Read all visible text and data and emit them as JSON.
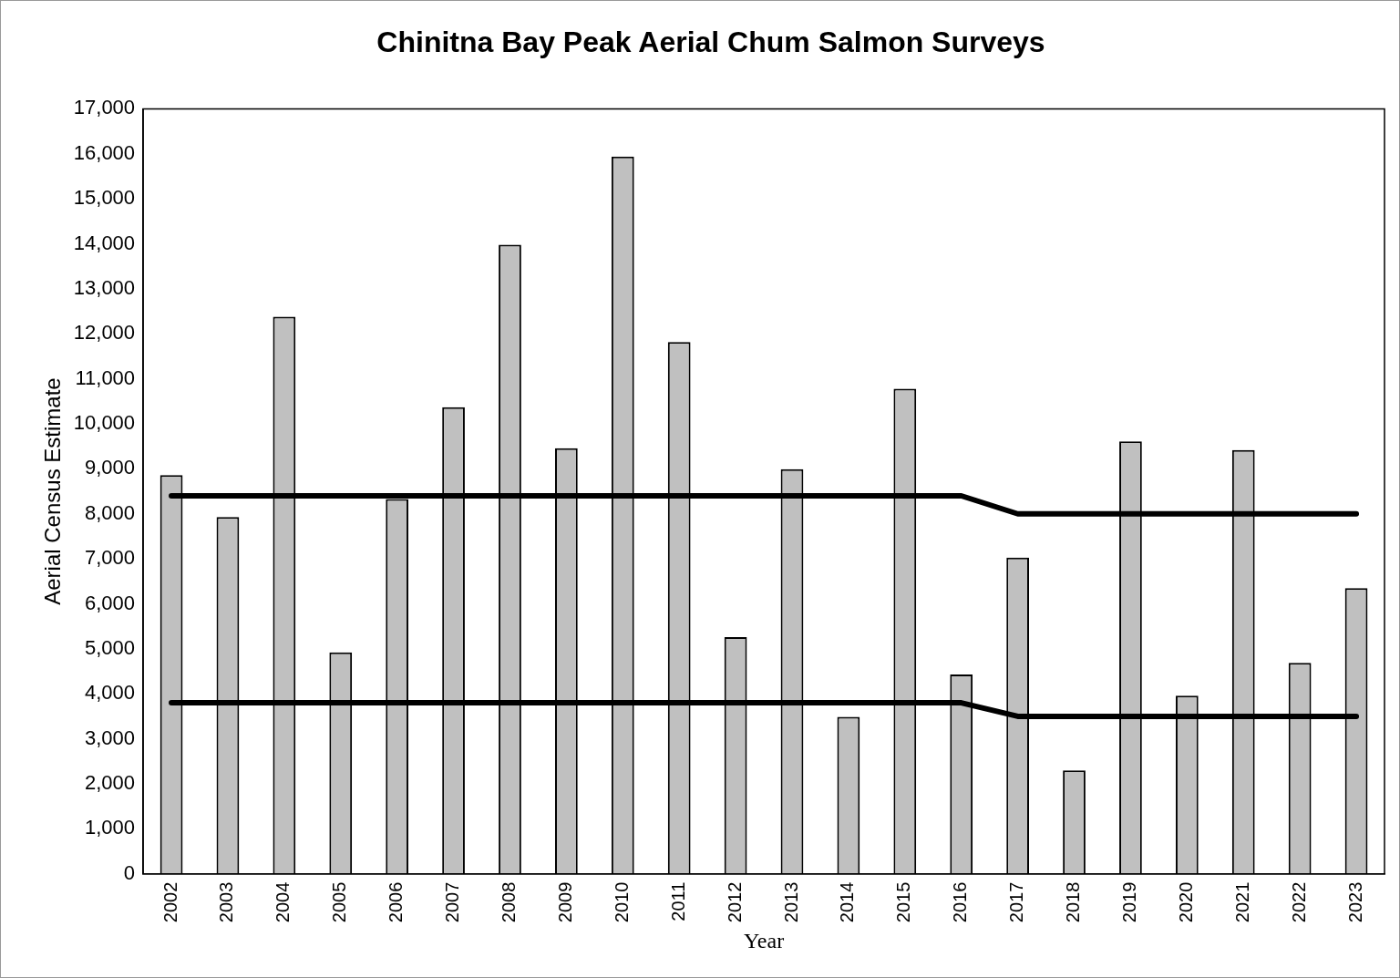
{
  "chart_data": {
    "type": "bar",
    "title": "Chinitna Bay Peak Aerial Chum Salmon Surveys",
    "xlabel": "Year",
    "ylabel": "Aerial Census Estimate",
    "categories": [
      "2002",
      "2003",
      "2004",
      "2005",
      "2006",
      "2007",
      "2008",
      "2009",
      "2010",
      "2011",
      "2012",
      "2013",
      "2014",
      "2015",
      "2016",
      "2017",
      "2018",
      "2019",
      "2020",
      "2021",
      "2022",
      "2023"
    ],
    "series": [
      {
        "color": "#c0c0c0",
        "values": [
          8860,
          7930,
          12380,
          4920,
          8330,
          10370,
          13980,
          9460,
          15940,
          11820,
          5260,
          8990,
          3490,
          10780,
          4430,
          7030,
          2300,
          9610,
          3960,
          9420,
          4690,
          6350
        ]
      },
      {
        "type": "line",
        "color": "#000000",
        "values": [
          8400,
          8400,
          8400,
          8400,
          8400,
          8400,
          8400,
          8400,
          8400,
          8400,
          8400,
          8400,
          8400,
          8400,
          8400,
          8000,
          8000,
          8000,
          8000,
          8000,
          8000,
          8000
        ]
      },
      {
        "type": "line",
        "color": "#000000",
        "values": [
          3800,
          3800,
          3800,
          3800,
          3800,
          3800,
          3800,
          3800,
          3800,
          3800,
          3800,
          3800,
          3800,
          3800,
          3800,
          3500,
          3500,
          3500,
          3500,
          3500,
          3500,
          3500
        ]
      }
    ],
    "ylim": [
      0,
      17000
    ],
    "yticks": [
      0,
      {
        "value": 1000,
        "label": "1,000"
      },
      {
        "value": 2000,
        "label": "2,000"
      },
      {
        "value": 3000,
        "label": "3,000"
      },
      {
        "value": 4000,
        "label": "4,000"
      },
      {
        "value": 5000,
        "label": "5,000"
      },
      {
        "value": 6000,
        "label": "6,000"
      },
      {
        "value": 7000,
        "label": "7,000"
      },
      {
        "value": 8000,
        "label": "8,000"
      },
      {
        "value": 9000,
        "label": "9,000"
      },
      {
        "value": 10000,
        "label": "10,000"
      },
      {
        "value": 11000,
        "label": "11,000"
      },
      {
        "value": 12000,
        "label": "12,000"
      },
      {
        "value": 13000,
        "label": "13,000"
      },
      {
        "value": 14000,
        "label": "14,000"
      },
      {
        "value": 15000,
        "label": "15,000"
      },
      {
        "value": 16000,
        "label": "16,000"
      },
      {
        "value": 17000,
        "label": "17,000"
      }
    ],
    "grid": false,
    "legend": false,
    "marker": "none",
    "line_style": "solid"
  }
}
